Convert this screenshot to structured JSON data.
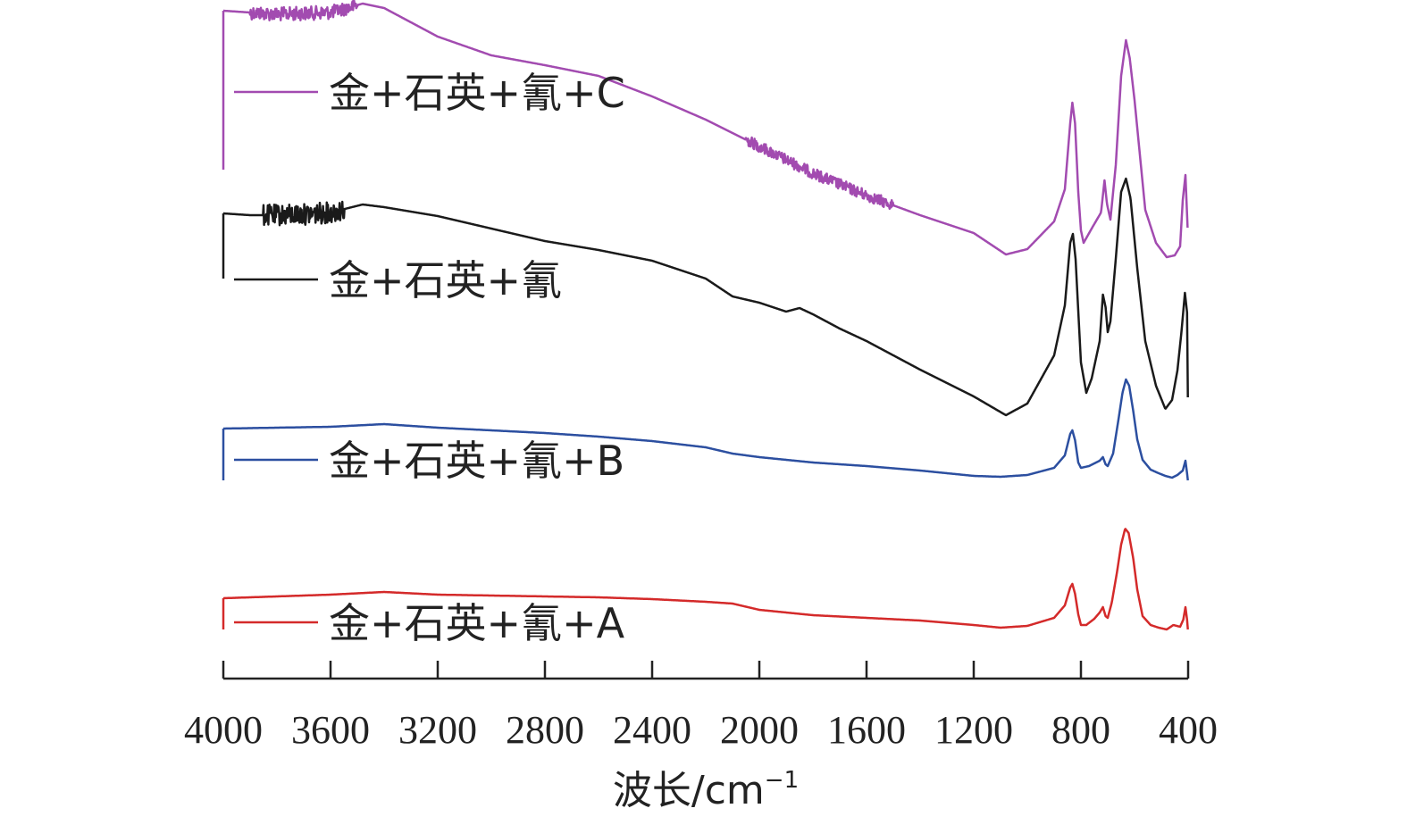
{
  "chart_data": {
    "type": "line",
    "title": "",
    "xlabel": "波长/cm",
    "xlabel_sup": "−1",
    "ylabel": "",
    "x_reversed": true,
    "xlim": [
      4000,
      400
    ],
    "x_ticks": [
      4000,
      3600,
      3200,
      2800,
      2400,
      2000,
      1600,
      1200,
      800,
      400
    ],
    "grid": false,
    "legend_placement": "inline-left",
    "series": [
      {
        "name": "金+石英+氰+C",
        "color": "#a24bb0",
        "noise": [
          [
            3900,
            3500,
            0.55
          ],
          [
            2050,
            1500,
            0.45
          ]
        ],
        "points": [
          [
            4000,
            12
          ],
          [
            3900,
            14
          ],
          [
            3800,
            16
          ],
          [
            3700,
            15
          ],
          [
            3600,
            14
          ],
          [
            3550,
            10
          ],
          [
            3480,
            4
          ],
          [
            3400,
            9
          ],
          [
            3300,
            25
          ],
          [
            3200,
            41
          ],
          [
            3000,
            62
          ],
          [
            2800,
            73
          ],
          [
            2600,
            85
          ],
          [
            2400,
            108
          ],
          [
            2200,
            134
          ],
          [
            2000,
            164
          ],
          [
            1800,
            194
          ],
          [
            1600,
            219
          ],
          [
            1400,
            241
          ],
          [
            1200,
            261
          ],
          [
            1080,
            285
          ],
          [
            1000,
            279
          ],
          [
            900,
            248
          ],
          [
            860,
            212
          ],
          [
            840,
            138
          ],
          [
            832,
            115
          ],
          [
            822,
            138
          ],
          [
            810,
            215
          ],
          [
            800,
            258
          ],
          [
            790,
            272
          ],
          [
            760,
            256
          ],
          [
            725,
            238
          ],
          [
            712,
            202
          ],
          [
            703,
            228
          ],
          [
            690,
            246
          ],
          [
            670,
            185
          ],
          [
            650,
            85
          ],
          [
            632,
            45
          ],
          [
            618,
            65
          ],
          [
            600,
            112
          ],
          [
            560,
            235
          ],
          [
            520,
            272
          ],
          [
            480,
            288
          ],
          [
            450,
            286
          ],
          [
            430,
            276
          ],
          [
            420,
            224
          ],
          [
            410,
            196
          ],
          [
            402,
            255
          ]
        ]
      },
      {
        "name": "金+石英+氰",
        "color": "#1a1a1a",
        "noise": [
          [
            3850,
            3550,
            0.85
          ]
        ],
        "points": [
          [
            4000,
            239
          ],
          [
            3900,
            241
          ],
          [
            3800,
            241
          ],
          [
            3700,
            240
          ],
          [
            3600,
            238
          ],
          [
            3480,
            229
          ],
          [
            3400,
            232
          ],
          [
            3200,
            242
          ],
          [
            3000,
            256
          ],
          [
            2800,
            270
          ],
          [
            2600,
            280
          ],
          [
            2400,
            292
          ],
          [
            2200,
            312
          ],
          [
            2100,
            332
          ],
          [
            2000,
            339
          ],
          [
            1900,
            349
          ],
          [
            1850,
            345
          ],
          [
            1800,
            352
          ],
          [
            1700,
            368
          ],
          [
            1600,
            382
          ],
          [
            1500,
            398
          ],
          [
            1400,
            414
          ],
          [
            1200,
            444
          ],
          [
            1080,
            465
          ],
          [
            1000,
            452
          ],
          [
            900,
            398
          ],
          [
            860,
            342
          ],
          [
            840,
            272
          ],
          [
            830,
            262
          ],
          [
            820,
            290
          ],
          [
            800,
            406
          ],
          [
            780,
            440
          ],
          [
            760,
            424
          ],
          [
            730,
            382
          ],
          [
            718,
            330
          ],
          [
            708,
            344
          ],
          [
            700,
            372
          ],
          [
            690,
            360
          ],
          [
            670,
            290
          ],
          [
            650,
            215
          ],
          [
            632,
            200
          ],
          [
            615,
            222
          ],
          [
            590,
            300
          ],
          [
            560,
            382
          ],
          [
            520,
            432
          ],
          [
            485,
            458
          ],
          [
            460,
            448
          ],
          [
            440,
            415
          ],
          [
            425,
            372
          ],
          [
            412,
            328
          ],
          [
            404,
            350
          ],
          [
            401,
            445
          ]
        ]
      },
      {
        "name": "金+石英+氰+B",
        "color": "#2c4fa0",
        "noise": [],
        "points": [
          [
            4000,
            480
          ],
          [
            3800,
            479
          ],
          [
            3600,
            478
          ],
          [
            3400,
            475
          ],
          [
            3200,
            479
          ],
          [
            3000,
            482
          ],
          [
            2800,
            485
          ],
          [
            2600,
            489
          ],
          [
            2400,
            494
          ],
          [
            2200,
            501
          ],
          [
            2100,
            508
          ],
          [
            2000,
            512
          ],
          [
            1900,
            515
          ],
          [
            1800,
            518
          ],
          [
            1600,
            522
          ],
          [
            1400,
            527
          ],
          [
            1200,
            533
          ],
          [
            1100,
            534
          ],
          [
            1000,
            532
          ],
          [
            900,
            524
          ],
          [
            860,
            510
          ],
          [
            840,
            486
          ],
          [
            832,
            482
          ],
          [
            822,
            493
          ],
          [
            810,
            518
          ],
          [
            800,
            524
          ],
          [
            770,
            522
          ],
          [
            730,
            516
          ],
          [
            718,
            512
          ],
          [
            708,
            520
          ],
          [
            700,
            522
          ],
          [
            680,
            508
          ],
          [
            660,
            470
          ],
          [
            645,
            440
          ],
          [
            632,
            425
          ],
          [
            620,
            432
          ],
          [
            605,
            460
          ],
          [
            590,
            492
          ],
          [
            570,
            515
          ],
          [
            540,
            526
          ],
          [
            510,
            530
          ],
          [
            485,
            533
          ],
          [
            460,
            535
          ],
          [
            440,
            532
          ],
          [
            420,
            527
          ],
          [
            410,
            516
          ],
          [
            404,
            530
          ],
          [
            401,
            538
          ]
        ]
      },
      {
        "name": "金+石英+氰+A",
        "color": "#d42a2a",
        "noise": [],
        "points": [
          [
            4000,
            670
          ],
          [
            3800,
            668
          ],
          [
            3600,
            666
          ],
          [
            3400,
            663
          ],
          [
            3200,
            666
          ],
          [
            3000,
            667
          ],
          [
            2800,
            668
          ],
          [
            2600,
            669
          ],
          [
            2400,
            671
          ],
          [
            2200,
            674
          ],
          [
            2100,
            676
          ],
          [
            2000,
            683
          ],
          [
            1900,
            686
          ],
          [
            1800,
            689
          ],
          [
            1600,
            692
          ],
          [
            1400,
            695
          ],
          [
            1200,
            700
          ],
          [
            1100,
            703
          ],
          [
            1000,
            701
          ],
          [
            900,
            692
          ],
          [
            860,
            678
          ],
          [
            840,
            658
          ],
          [
            832,
            654
          ],
          [
            822,
            665
          ],
          [
            810,
            688
          ],
          [
            800,
            700
          ],
          [
            780,
            700
          ],
          [
            750,
            693
          ],
          [
            730,
            686
          ],
          [
            718,
            680
          ],
          [
            708,
            690
          ],
          [
            700,
            692
          ],
          [
            685,
            675
          ],
          [
            665,
            640
          ],
          [
            650,
            610
          ],
          [
            635,
            592
          ],
          [
            622,
            597
          ],
          [
            605,
            625
          ],
          [
            590,
            660
          ],
          [
            570,
            690
          ],
          [
            540,
            700
          ],
          [
            510,
            703
          ],
          [
            480,
            705
          ],
          [
            455,
            700
          ],
          [
            430,
            702
          ],
          [
            418,
            694
          ],
          [
            410,
            680
          ],
          [
            404,
            694
          ],
          [
            401,
            705
          ]
        ]
      }
    ]
  }
}
